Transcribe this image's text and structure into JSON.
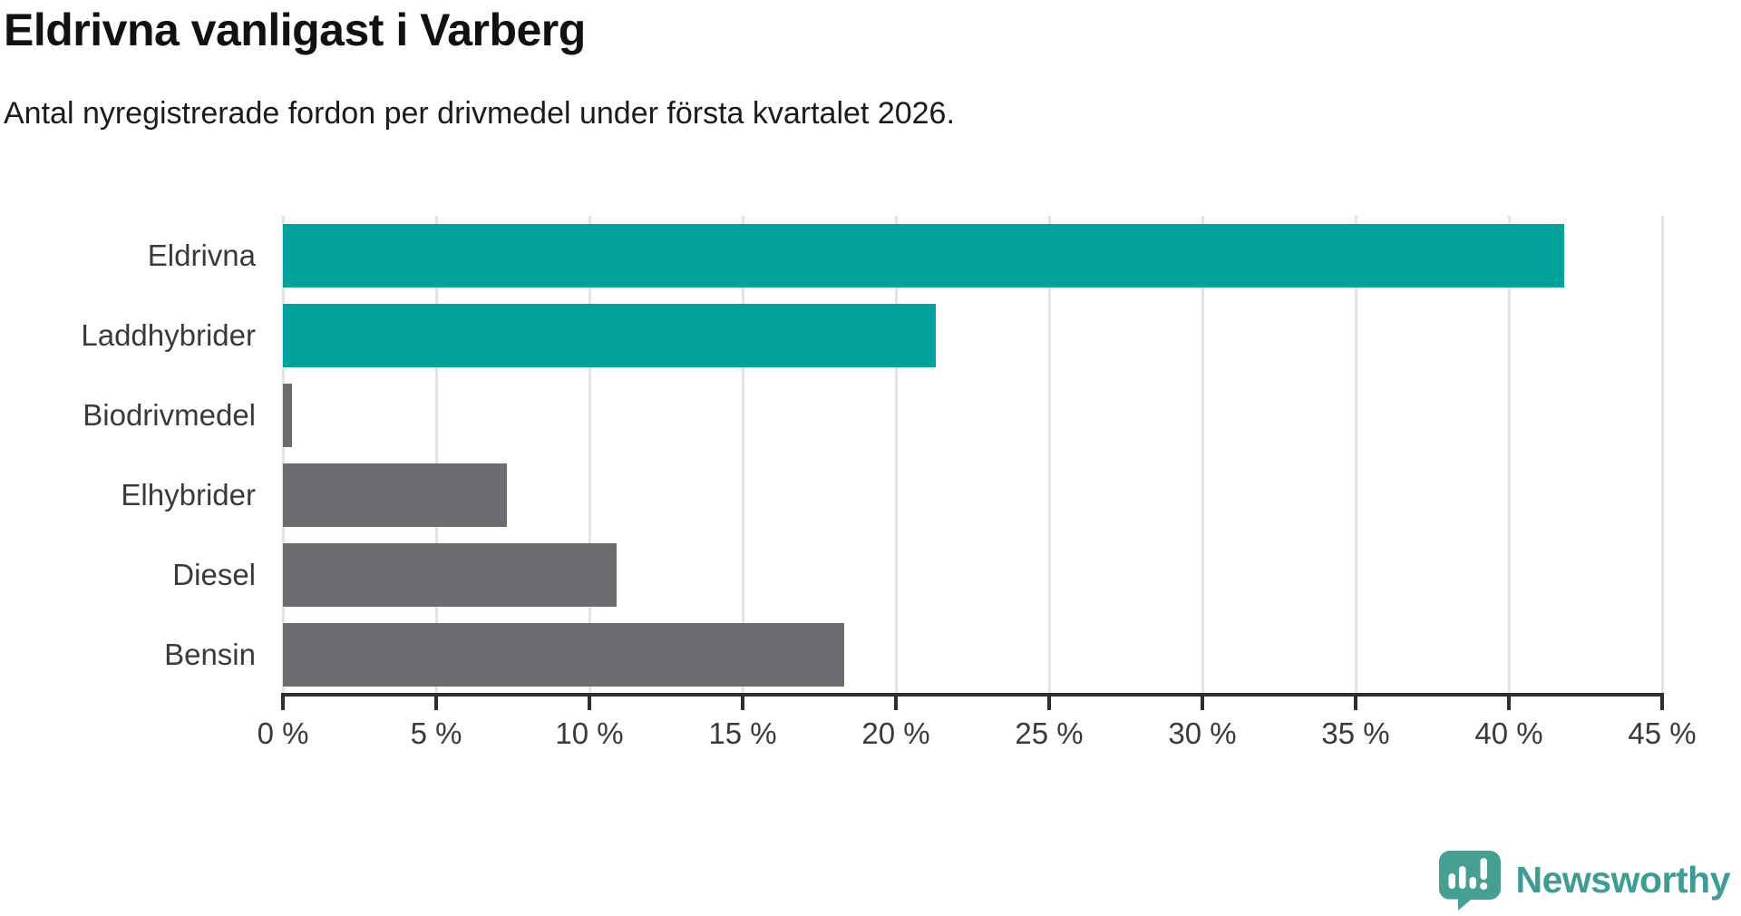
{
  "header": {
    "title": "Eldrivna vanligast i Varberg",
    "subtitle": "Antal nyregistrerade fordon per drivmedel under första kvartalet 2026."
  },
  "chart_data": {
    "type": "bar",
    "orientation": "horizontal",
    "title": "Eldrivna vanligast i Varberg",
    "subtitle": "Antal nyregistrerade fordon per drivmedel under första kvartalet 2026.",
    "categories": [
      "Eldrivna",
      "Laddhybrider",
      "Biodrivmedel",
      "Elhybrider",
      "Diesel",
      "Bensin"
    ],
    "values": [
      41.8,
      21.3,
      0.3,
      7.3,
      10.9,
      18.3
    ],
    "unit": "%",
    "xlabel": "",
    "ylabel": "",
    "xlim": [
      0,
      45
    ],
    "x_ticks": [
      0,
      5,
      10,
      15,
      20,
      25,
      30,
      35,
      40,
      45
    ],
    "x_tick_labels": [
      "0 %",
      "5 %",
      "10 %",
      "15 %",
      "20 %",
      "25 %",
      "30 %",
      "35 %",
      "40 %",
      "45 %"
    ],
    "bar_colors": [
      "#00A29B",
      "#00A29B",
      "#6C6C71",
      "#6C6C71",
      "#6C6C71",
      "#6C6C71"
    ],
    "highlight_color": "#00A29B",
    "default_color": "#6C6C71",
    "grid": true,
    "legend": "none"
  },
  "colors": {
    "grid": "#E3E3E3",
    "axis": "#2E2E2E",
    "tick_label": "#3A3A3A",
    "title": "#111111",
    "subtitle": "#1B1B1B",
    "logo_text": "#3E9C94",
    "logo_icon": "#479E92"
  },
  "footer": {
    "brand": "Newsworthy"
  }
}
